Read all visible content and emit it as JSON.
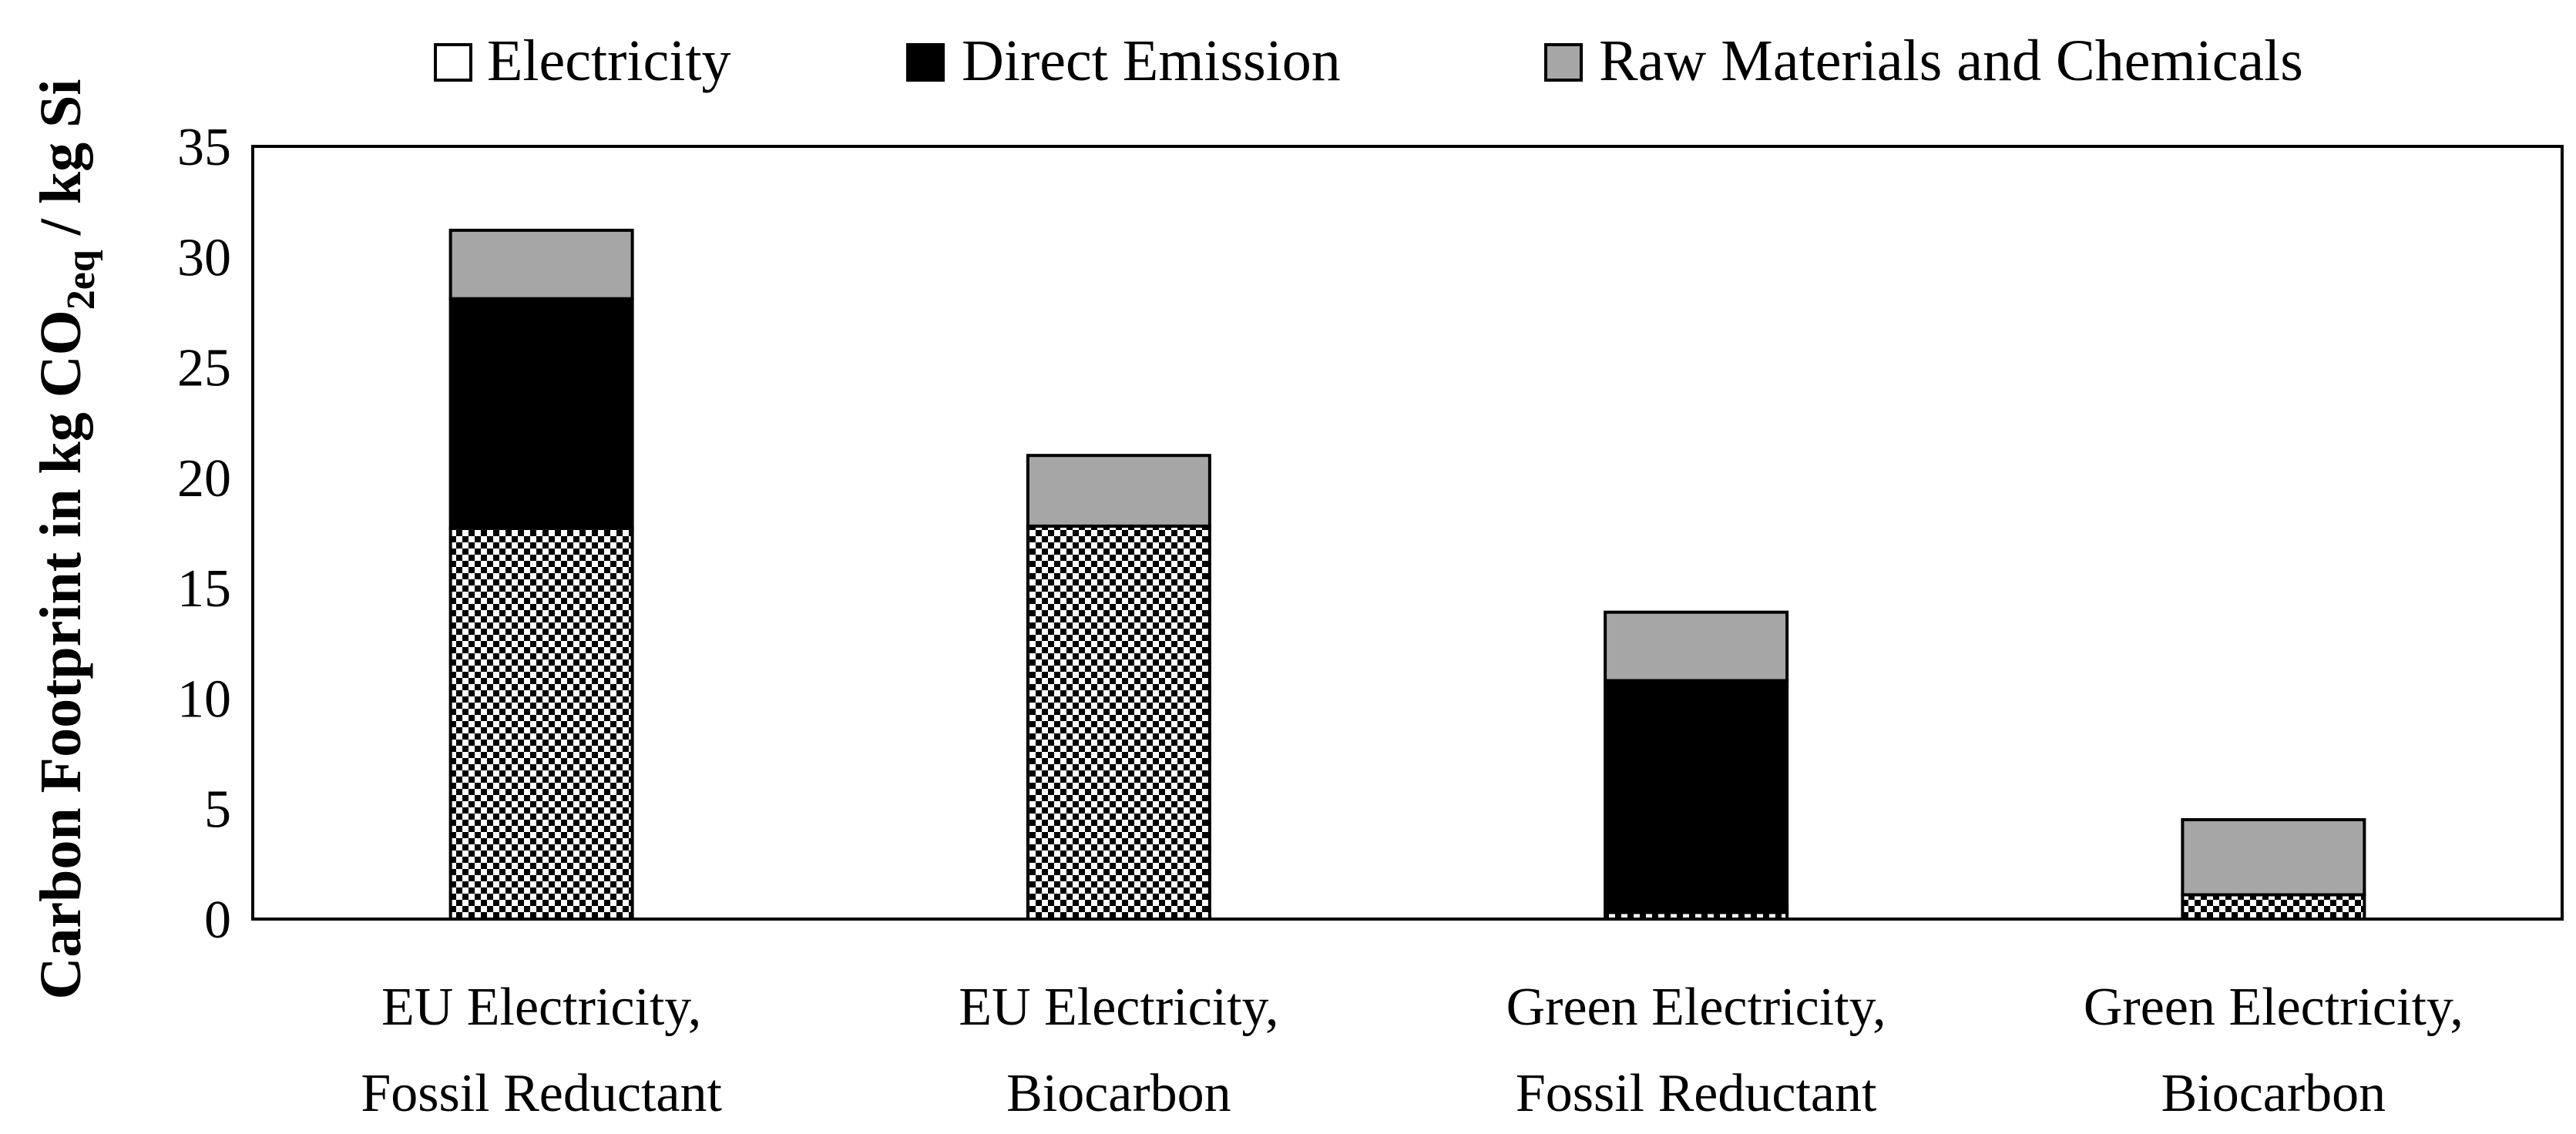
{
  "chart_data": {
    "type": "bar",
    "stacked": true,
    "categories": [
      [
        "EU Electricity,",
        "Fossil Reductant"
      ],
      [
        "EU Electricity,",
        "Biocarbon"
      ],
      [
        "Green Electricity,",
        "Fossil Reductant"
      ],
      [
        "Green Electricity,",
        "Biocarbon"
      ]
    ],
    "series": [
      {
        "name": "Electricity",
        "values": [
          17.7,
          17.8,
          0.3,
          1.1
        ],
        "fill": "checker",
        "color": "#000000"
      },
      {
        "name": "Direct Emission",
        "values": [
          10.4,
          0.0,
          10.5,
          0.0
        ],
        "fill": "solid",
        "color": "#000000"
      },
      {
        "name": "Raw Materials and Chemicals",
        "values": [
          3.1,
          3.2,
          3.1,
          3.4
        ],
        "fill": "solid",
        "color": "#a6a6a6"
      }
    ],
    "legend_symbols": [
      "□",
      "■",
      "■"
    ],
    "title": "",
    "xlabel": "",
    "ylabel": {
      "main": "Carbon Footprint in kg CO",
      "sub": "2eq",
      "rest": " / kg Si"
    },
    "ylim": [
      0,
      35
    ],
    "yticks": [
      0,
      5,
      10,
      15,
      20,
      25,
      30,
      35
    ],
    "legend_position": "top",
    "grid": false
  }
}
